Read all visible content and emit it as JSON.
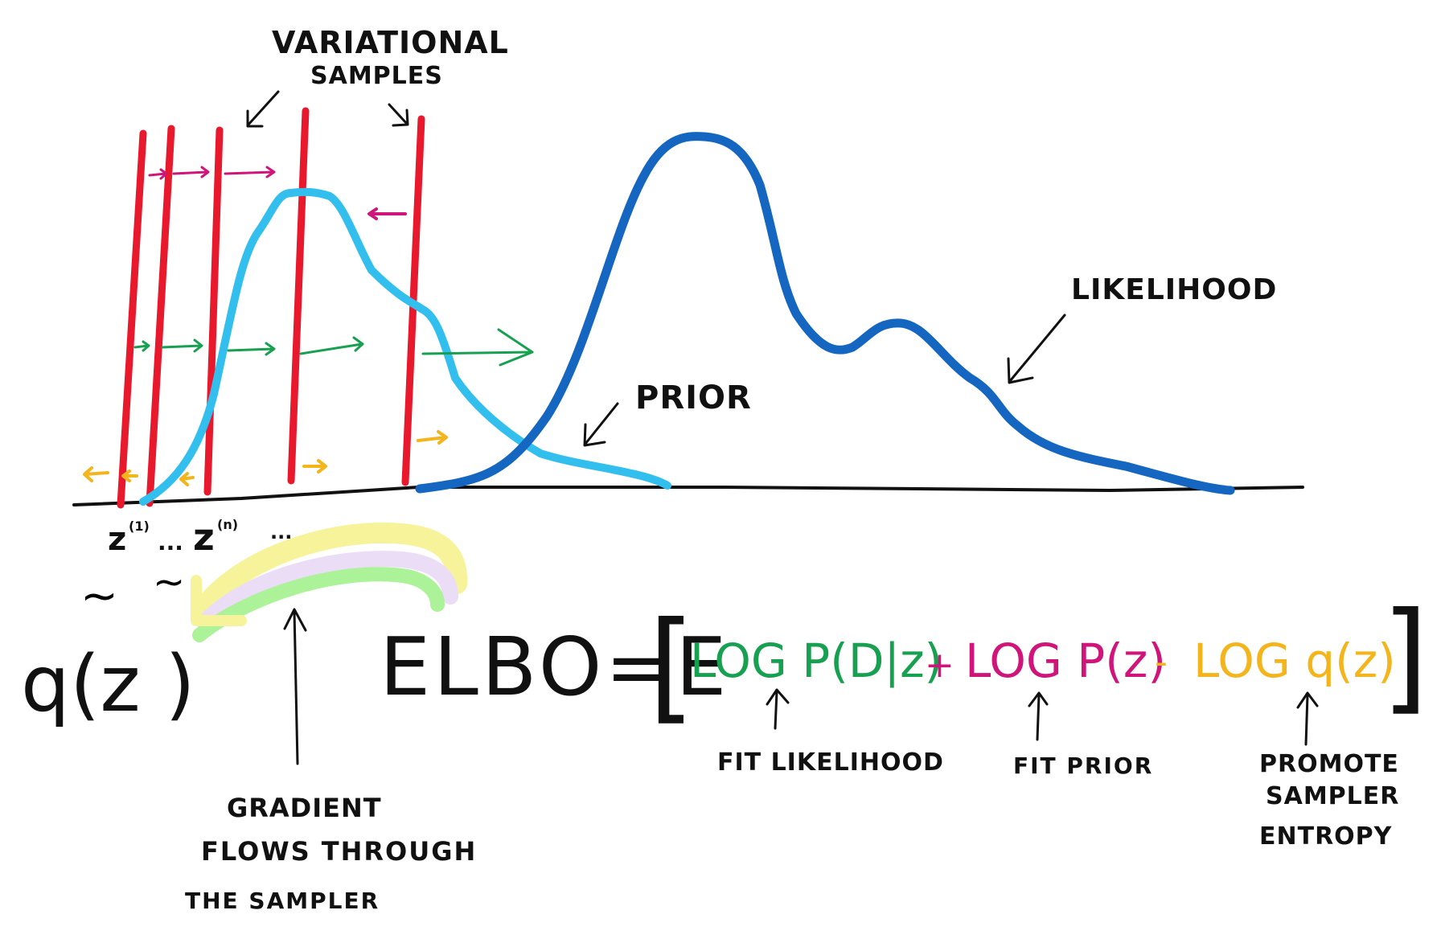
{
  "labels": {
    "variational_samples_line1": "VARIATIONAL",
    "variational_samples_line2": "SAMPLES",
    "likelihood": "LIKELIHOOD",
    "prior": "PRIOR",
    "z1": "z",
    "z1_sup": "(1)",
    "zn": "z",
    "zn_sup": "(n)",
    "ellipsis1": "...",
    "ellipsis2": "...",
    "tilde": "~",
    "qz": "q(z )",
    "gradient_line1": "GRADIENT",
    "gradient_line2": "FLOWS THROUGH",
    "gradient_line3": "THE SAMPLER",
    "fit_likelihood": "FIT LIKELIHOOD",
    "fit_prior": "FIT PRIOR",
    "entropy_line1": "PROMOTE",
    "entropy_line2": "SAMPLER",
    "entropy_line3": "ENTROPY"
  },
  "equation": {
    "lhs": "ELBO=E",
    "open_bracket": "[",
    "close_bracket": "]",
    "term1": "LOG P(D|z)",
    "op1": "+",
    "term2": "LOG P(z)",
    "op2": "-",
    "term3": "LOG q(z)"
  },
  "colors": {
    "sample_lines": "#e8192c",
    "likelihood_curve": "#1566c0",
    "prior_curve": "#33bfee",
    "likelihood_term": "#17a050",
    "prior_term": "#d0157a",
    "entropy_term": "#f4b41c",
    "ink": "#111111",
    "highlight_yellow": "#f5ef7a",
    "highlight_lilac": "#e4d2f2",
    "highlight_green": "#90ee78"
  }
}
